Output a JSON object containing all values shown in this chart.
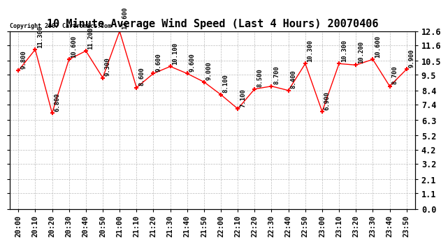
{
  "title": "10 Minute Average Wind Speed (Last 4 Hours) 20070406",
  "copyright": "Copyright 2007 Cartronics.com",
  "x_labels": [
    "20:00",
    "20:10",
    "20:20",
    "20:30",
    "20:40",
    "20:50",
    "21:00",
    "21:10",
    "21:20",
    "21:30",
    "21:40",
    "21:50",
    "22:00",
    "22:10",
    "22:20",
    "22:30",
    "22:40",
    "22:50",
    "23:00",
    "23:10",
    "23:20",
    "23:30",
    "23:40",
    "23:50"
  ],
  "y_values": [
    9.8,
    11.3,
    6.8,
    10.6,
    11.2,
    9.3,
    12.6,
    8.6,
    9.6,
    10.1,
    9.6,
    9.0,
    8.1,
    7.1,
    8.5,
    8.7,
    8.4,
    10.3,
    6.9,
    10.3,
    10.2,
    10.6,
    8.7,
    9.9
  ],
  "point_labels": [
    "9.800",
    "11.300",
    "6.800",
    "10.600",
    "11.200",
    "9.300",
    "12.600",
    "8.600",
    "9.600",
    "10.100",
    "9.600",
    "9.000",
    "8.100",
    "7.100",
    "8.500",
    "8.700",
    "8.400",
    "10.300",
    "6.900",
    "10.300",
    "10.200",
    "10.600",
    "8.700",
    "9.900"
  ],
  "line_color": "#ff0000",
  "marker_color": "#ff0000",
  "background_color": "#ffffff",
  "grid_color": "#bbbbbb",
  "y_ticks": [
    0.0,
    1.1,
    2.1,
    3.2,
    4.2,
    5.2,
    6.3,
    7.4,
    8.4,
    9.5,
    10.5,
    11.6,
    12.6
  ],
  "ylim": [
    0.0,
    12.6
  ],
  "title_fontsize": 11,
  "label_fontsize": 6.5,
  "tick_fontsize": 7.5,
  "ytick_fontsize": 8.5
}
